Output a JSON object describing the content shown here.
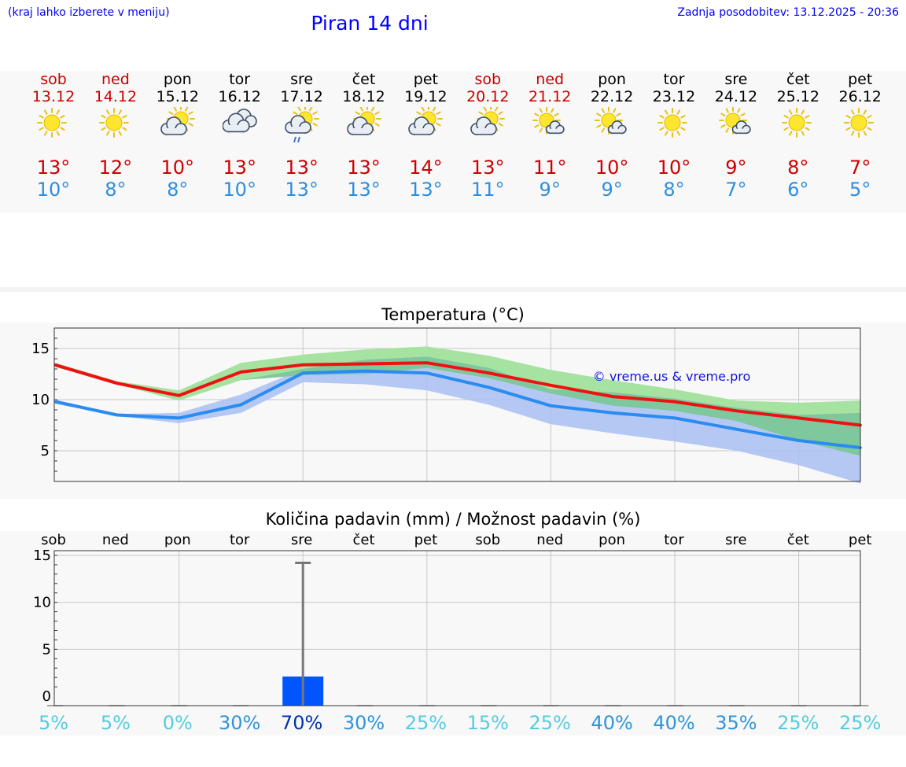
{
  "header": {
    "menu_hint": "(kraj lahko izberete v meniju)",
    "title": "Piran 14 dni",
    "updated": "Zadnja posodobitev: 13.12.2025 - 20:36"
  },
  "days": [
    {
      "name": "sob",
      "date": "13.12",
      "weekend": true,
      "icon": "sun-icon",
      "tmax": "13°",
      "tmin": "10°"
    },
    {
      "name": "ned",
      "date": "14.12",
      "weekend": true,
      "icon": "sun-icon",
      "tmax": "12°",
      "tmin": "8°"
    },
    {
      "name": "pon",
      "date": "15.12",
      "weekend": false,
      "icon": "sun-cloud-icon",
      "tmax": "10°",
      "tmin": "8°"
    },
    {
      "name": "tor",
      "date": "16.12",
      "weekend": false,
      "icon": "cloudy-icon",
      "tmax": "13°",
      "tmin": "10°"
    },
    {
      "name": "sre",
      "date": "17.12",
      "weekend": false,
      "icon": "rain-icon",
      "tmax": "13°",
      "tmin": "13°"
    },
    {
      "name": "čet",
      "date": "18.12",
      "weekend": false,
      "icon": "sun-cloud-icon",
      "tmax": "13°",
      "tmin": "13°"
    },
    {
      "name": "pet",
      "date": "19.12",
      "weekend": false,
      "icon": "sun-cloud-icon",
      "tmax": "14°",
      "tmin": "13°"
    },
    {
      "name": "sob",
      "date": "20.12",
      "weekend": true,
      "icon": "sun-cloud-icon",
      "tmax": "13°",
      "tmin": "11°"
    },
    {
      "name": "ned",
      "date": "21.12",
      "weekend": true,
      "icon": "sun-small-cloud-icon",
      "tmax": "11°",
      "tmin": "9°"
    },
    {
      "name": "pon",
      "date": "22.12",
      "weekend": false,
      "icon": "sun-small-cloud-icon",
      "tmax": "10°",
      "tmin": "9°"
    },
    {
      "name": "tor",
      "date": "23.12",
      "weekend": false,
      "icon": "sun-icon",
      "tmax": "10°",
      "tmin": "8°"
    },
    {
      "name": "sre",
      "date": "24.12",
      "weekend": false,
      "icon": "sun-small-cloud-icon",
      "tmax": "9°",
      "tmin": "7°"
    },
    {
      "name": "čet",
      "date": "25.12",
      "weekend": false,
      "icon": "sun-icon",
      "tmax": "8°",
      "tmin": "6°"
    },
    {
      "name": "pet",
      "date": "26.12",
      "weekend": false,
      "icon": "sun-icon",
      "tmax": "7°",
      "tmin": "5°"
    }
  ],
  "colors": {
    "weekend": "#cc0000",
    "tmax": "#cc0000",
    "tmin": "#2b8fe0",
    "max_line": "#ee1111",
    "min_line": "#2a8cf0",
    "max_band": "#a6e3a0",
    "min_band": "#a9bff2",
    "overlap_band": "#7fc79c",
    "precip_bar": "#0055ff",
    "pct_low": "#55ccdd",
    "pct_mid": "#2f94d8",
    "pct_high": "#0033aa"
  },
  "chart_data": [
    {
      "type": "line",
      "title": "Temperatura (°C)",
      "ylim": [
        2,
        17
      ],
      "yticks": [
        5,
        10,
        15
      ],
      "x": [
        0,
        1,
        2,
        3,
        4,
        5,
        6,
        7,
        8,
        9,
        10,
        11,
        12,
        13
      ],
      "watermark": "© vreme.us & vreme.pro",
      "series": [
        {
          "name": "max",
          "values": [
            13.4,
            11.6,
            10.4,
            12.7,
            13.4,
            13.5,
            13.6,
            12.6,
            11.4,
            10.3,
            9.8,
            8.9,
            8.2,
            7.5
          ],
          "band_low": [
            13.2,
            11.5,
            9.9,
            11.9,
            12.4,
            12.5,
            13.1,
            12.1,
            10.6,
            9.4,
            8.9,
            7.9,
            6.0,
            4.5
          ],
          "band_high": [
            13.6,
            11.8,
            10.9,
            13.6,
            14.4,
            14.9,
            15.2,
            14.3,
            12.9,
            11.9,
            11.0,
            9.9,
            9.7,
            9.9
          ]
        },
        {
          "name": "min",
          "values": [
            9.8,
            8.5,
            8.2,
            9.5,
            12.6,
            12.8,
            12.6,
            11.2,
            9.4,
            8.7,
            8.2,
            7.1,
            6.0,
            5.3
          ],
          "band_low": [
            9.6,
            8.4,
            7.7,
            8.7,
            11.7,
            11.5,
            10.9,
            9.5,
            7.6,
            6.7,
            5.9,
            5.0,
            3.6,
            1.8
          ],
          "band_high": [
            10.0,
            8.6,
            8.7,
            10.5,
            13.0,
            13.9,
            14.2,
            13.1,
            11.0,
            10.7,
            10.1,
            9.2,
            8.5,
            8.7
          ]
        }
      ]
    },
    {
      "type": "bar",
      "title": "Količina padavin (mm) / Možnost padavin (%)",
      "ylim": [
        -1,
        15.5
      ],
      "yticks": [
        0,
        5,
        10,
        15
      ],
      "categories": [
        "sob",
        "ned",
        "pon",
        "tor",
        "sre",
        "čet",
        "pet",
        "sob",
        "ned",
        "pon",
        "tor",
        "sre",
        "čet",
        "pet"
      ],
      "values": [
        0,
        0,
        0,
        0,
        2.1,
        0,
        0,
        0,
        0,
        0,
        0,
        0,
        0,
        0
      ],
      "max_values": [
        0,
        0,
        0,
        0,
        14.2,
        0,
        0,
        0,
        0,
        0,
        0,
        0,
        0,
        0
      ],
      "probability": [
        "5%",
        "5%",
        "0%",
        "30%",
        "70%",
        "30%",
        "25%",
        "15%",
        "25%",
        "40%",
        "40%",
        "35%",
        "25%",
        "25%"
      ]
    }
  ]
}
